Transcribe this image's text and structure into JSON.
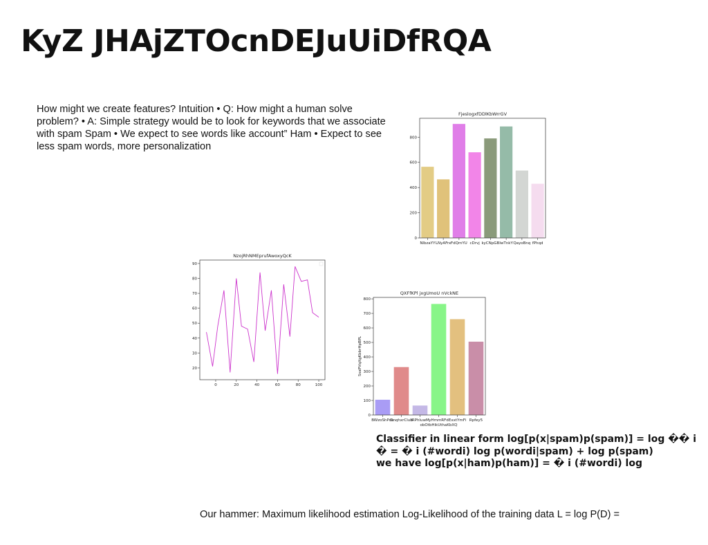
{
  "title": "KyZ JHAjZTOcnDEJuUiDfRQA",
  "paragraph": "How might we create features? Intuition • Q: How might a human solve problem? • A: Simple strategy would be to look for keywords that we associate with spam Spam • We expect to see words like account” Ham • Expect to see less spam words, more personalization",
  "bold_lines": [
    "Classifier in linear form log[p(x|spam)p(spam)] = log �� i",
    "� = � i (#wordi) log p(wordi|spam) + log p(spam)",
    "we have log[p(x|ham)p(ham)] = � i (#wordi) log"
  ],
  "footer": "Our hammer: Maximum likelihood estimation Log-Likelihood of the training data L = log P(D) =",
  "chart_data": [
    {
      "type": "bar",
      "title": "FjeslogxfDDlKbWrrGV",
      "categories": [
        "NlbzaYY",
        "LNyAFrx",
        "FdQmYU",
        "cDrvj",
        "kyCNpGB",
        "lwTnkY",
        "QayoBnq",
        "fPhqd"
      ],
      "values": [
        565,
        465,
        905,
        680,
        790,
        885,
        535,
        430
      ],
      "colors": [
        "#e3cc85",
        "#e0c27a",
        "#e07ee8",
        "#f285e8",
        "#8a9a7a",
        "#95bba8",
        "#d3d6d3",
        "#f5dcef"
      ],
      "ylim": [
        0,
        950
      ],
      "yticks": [
        0,
        200,
        400,
        600,
        800
      ]
    },
    {
      "type": "line",
      "title": "NzojRhNMEprufAwoxyQcK",
      "x": [
        -9,
        -3,
        2,
        8,
        14,
        20,
        25,
        31,
        37,
        43,
        48,
        54,
        60,
        66,
        72,
        77,
        83,
        89,
        94,
        100
      ],
      "values": [
        44,
        21,
        48,
        72,
        17,
        80,
        48,
        46,
        24,
        84,
        45,
        72,
        16,
        76,
        41,
        88,
        78,
        79,
        57,
        54
      ],
      "color": "#cc33cc",
      "xlim": [
        -15.4,
        106
      ],
      "xticks": [
        0,
        20,
        40,
        60,
        80,
        100
      ],
      "ylim": [
        12.1,
        92.3
      ],
      "yticks": [
        20,
        30,
        40,
        50,
        60,
        70,
        80,
        90
      ]
    },
    {
      "type": "bar",
      "title": "QXFfKPl jxgUmoU nVckNE",
      "ylabel": "SsaPVqXgKbbrHpBPL",
      "categories": [
        "BWzoShPdu",
        "DnqhxrClub",
        "lRPhluwM",
        "yHmmRFd obOtbHikUthaKbXQ",
        "ExxtYmFi",
        "Rpfey5"
      ],
      "values": [
        105,
        330,
        65,
        765,
        660,
        505
      ],
      "colors": [
        "#a99cf5",
        "#e08a8a",
        "#c4b8e6",
        "#88f588",
        "#e3c07f",
        "#c98ea8"
      ],
      "ylim": [
        0,
        810
      ],
      "yticks": [
        0,
        100,
        200,
        300,
        400,
        500,
        600,
        700,
        800
      ]
    }
  ]
}
